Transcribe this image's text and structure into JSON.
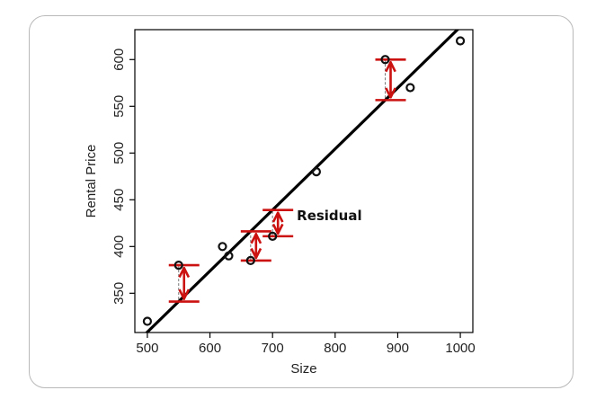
{
  "chart_data": {
    "type": "scatter",
    "title": "",
    "xlabel": "Size",
    "ylabel": "Rental Price",
    "xlim": [
      480,
      1020
    ],
    "ylim": [
      308,
      632
    ],
    "xticks": [
      500,
      600,
      700,
      800,
      900,
      1000
    ],
    "yticks": [
      350,
      400,
      450,
      500,
      550,
      600
    ],
    "grid": false,
    "points": [
      {
        "x": 500,
        "y": 320
      },
      {
        "x": 550,
        "y": 380
      },
      {
        "x": 620,
        "y": 400
      },
      {
        "x": 630,
        "y": 390
      },
      {
        "x": 665,
        "y": 385
      },
      {
        "x": 700,
        "y": 411
      },
      {
        "x": 770,
        "y": 480
      },
      {
        "x": 880,
        "y": 600
      },
      {
        "x": 920,
        "y": 570
      },
      {
        "x": 1000,
        "y": 620
      }
    ],
    "regression_line": {
      "slope": 0.653,
      "intercept": -18.0
    },
    "residuals_highlighted": [
      550,
      660,
      710,
      880
    ],
    "annotation": "Residual",
    "colors": {
      "points": "#111111",
      "line": "#000000",
      "residual": "#cc1111"
    }
  }
}
